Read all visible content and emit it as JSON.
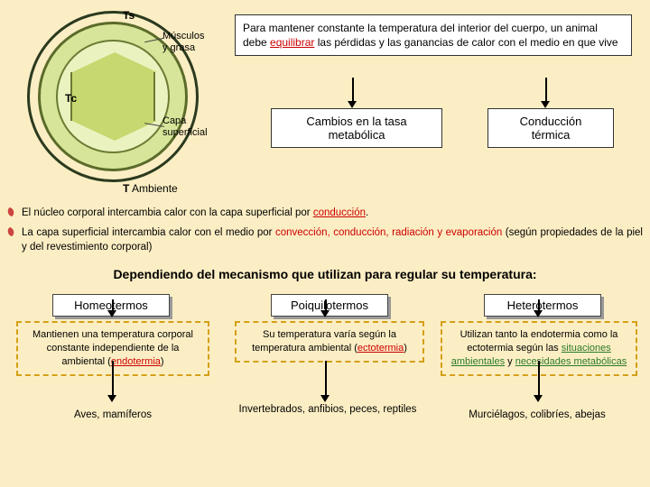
{
  "topbox": {
    "t1": "Para mantener constante la temperatura del interior del cuerpo, un animal debe ",
    "t2": "equilibrar",
    "t3": " las pérdidas y las ganancias de calor con el medio en que vive"
  },
  "mid": {
    "m1a": "Cambios en la tasa",
    "m1b": "metabólica",
    "m2a": "Conducción",
    "m2b": "térmica"
  },
  "diagram": {
    "ts": "Ts",
    "tc": "Tc",
    "musc1": "Músculos",
    "musc2": "y grasa",
    "capa1": "Capa",
    "capa2": "superficial",
    "tamb_t": "T",
    "tamb_s": " Ambiente"
  },
  "bullets": {
    "b1a": "El núcleo corporal intercambia calor con la capa superficial por ",
    "b1b": "conducción",
    "b1c": ".",
    "b2a": "La capa superficial intercambia calor con el medio por ",
    "b2b": "convección, conducción, radiación y evaporación",
    "b2c": " (según propiedades de la piel y del revestimiento corporal)"
  },
  "heading": "Dependiendo del mecanismo que utilizan para regular su temperatura:",
  "col1": {
    "title": "Homeotermos",
    "d1": "Mantienen una temperatura corporal constante independiente de la ambiental (",
    "d2": "endotermia",
    "d3": ")",
    "eg": "Aves, mamíferos"
  },
  "col2": {
    "title": "Poiquilotermos",
    "d1": "Su temperatura varía según la temperatura ambiental (",
    "d2": "ectotermia",
    "d3": ")",
    "eg": "Invertebrados, anfibios, peces, reptiles"
  },
  "col3": {
    "title": "Heterotermos",
    "d1": "Utilizan tanto la endotermia como la ectotermia según las ",
    "d2": "situaciones ambientales",
    "d3": " y ",
    "d4": "necesidades metabólicas",
    "eg": "Murciélagos, colibríes, abejas"
  }
}
